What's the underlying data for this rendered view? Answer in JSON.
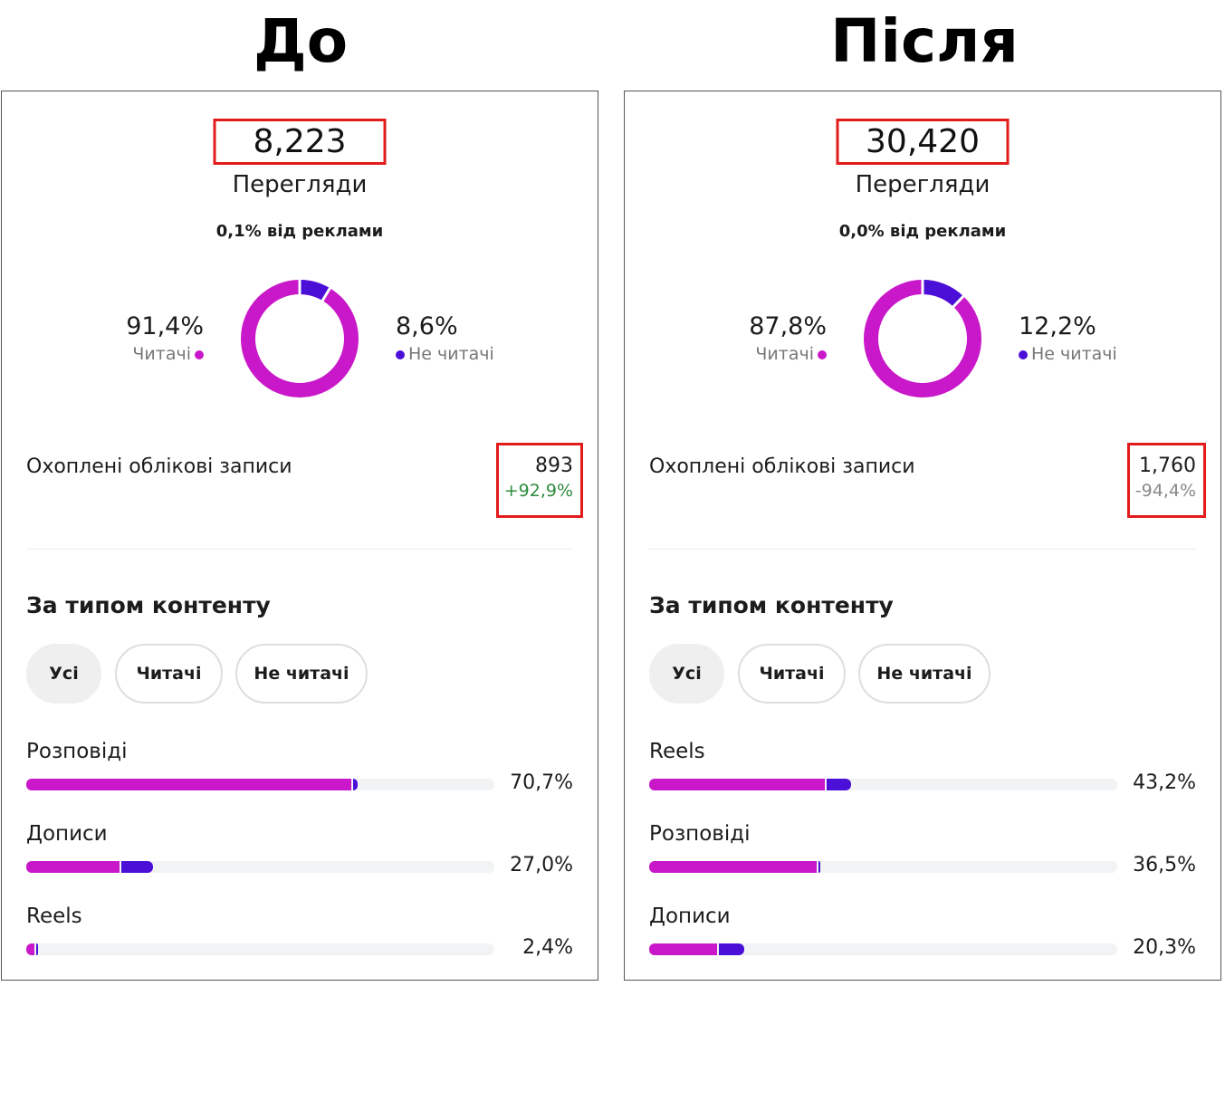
{
  "colors": {
    "followers": "#c918c9",
    "non_followers": "#4b10d8",
    "highlight": "#e21b1b",
    "positive": "#2e8b3e",
    "neutral": "#888888"
  },
  "before": {
    "heading": "До",
    "views": "8,223",
    "views_label": "Перегляди",
    "ads_line": "0,1% від реклами",
    "followers_pct": "91,4%",
    "followers_label": "Читачі",
    "non_followers_pct": "8,6%",
    "non_followers_label": "Не читачі",
    "followers_share": 0.914,
    "reach_label": "Охоплені облікові записи",
    "reach_value": "893",
    "reach_change": "+92,9%",
    "section_title": "За типом контенту",
    "filters": [
      "Усі",
      "Читачі",
      "Не читачі"
    ],
    "content": [
      {
        "label": "Розповіді",
        "pct": "70,7%",
        "followers_fraction": 0.695,
        "non_followers_fraction": 0.012
      },
      {
        "label": "Дописи",
        "pct": "27,0%",
        "followers_fraction": 0.2,
        "non_followers_fraction": 0.07
      },
      {
        "label": "Reels",
        "pct": "2,4%",
        "followers_fraction": 0.018,
        "non_followers_fraction": 0.006
      }
    ]
  },
  "after": {
    "heading": "Після",
    "views": "30,420",
    "views_label": "Перегляди",
    "ads_line": "0,0% від реклами",
    "followers_pct": "87,8%",
    "followers_label": "Читачі",
    "non_followers_pct": "12,2%",
    "non_followers_label": "Не читачі",
    "followers_share": 0.878,
    "reach_label": "Охоплені облікові записи",
    "reach_value": "1,760",
    "reach_change": "-94,4%",
    "section_title": "За типом контенту",
    "filters": [
      "Усі",
      "Читачі",
      "Не читачі"
    ],
    "content": [
      {
        "label": "Reels",
        "pct": "43,2%",
        "followers_fraction": 0.375,
        "non_followers_fraction": 0.057
      },
      {
        "label": "Розповіді",
        "pct": "36,5%",
        "followers_fraction": 0.357,
        "non_followers_fraction": 0.008
      },
      {
        "label": "Дописи",
        "pct": "20,3%",
        "followers_fraction": 0.145,
        "non_followers_fraction": 0.058
      }
    ]
  }
}
